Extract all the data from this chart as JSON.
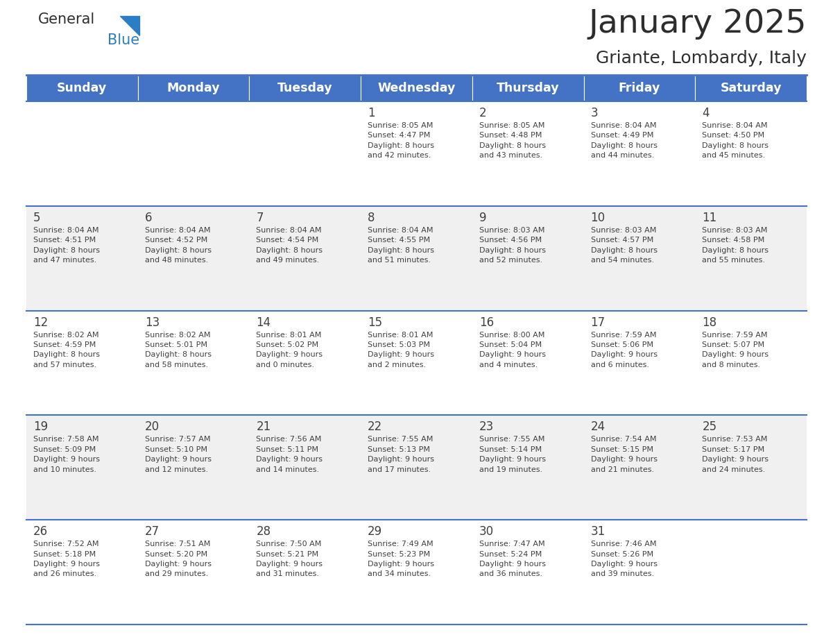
{
  "title": "January 2025",
  "subtitle": "Griante, Lombardy, Italy",
  "header_bg": "#4472C4",
  "header_text_color": "#FFFFFF",
  "cell_bg_even": "#FFFFFF",
  "cell_bg_odd": "#F0F0F0",
  "border_color": "#4472C4",
  "text_color": "#404040",
  "days_of_week": [
    "Sunday",
    "Monday",
    "Tuesday",
    "Wednesday",
    "Thursday",
    "Friday",
    "Saturday"
  ],
  "weeks": [
    [
      {
        "day": "",
        "info": ""
      },
      {
        "day": "",
        "info": ""
      },
      {
        "day": "",
        "info": ""
      },
      {
        "day": "1",
        "info": "Sunrise: 8:05 AM\nSunset: 4:47 PM\nDaylight: 8 hours\nand 42 minutes."
      },
      {
        "day": "2",
        "info": "Sunrise: 8:05 AM\nSunset: 4:48 PM\nDaylight: 8 hours\nand 43 minutes."
      },
      {
        "day": "3",
        "info": "Sunrise: 8:04 AM\nSunset: 4:49 PM\nDaylight: 8 hours\nand 44 minutes."
      },
      {
        "day": "4",
        "info": "Sunrise: 8:04 AM\nSunset: 4:50 PM\nDaylight: 8 hours\nand 45 minutes."
      }
    ],
    [
      {
        "day": "5",
        "info": "Sunrise: 8:04 AM\nSunset: 4:51 PM\nDaylight: 8 hours\nand 47 minutes."
      },
      {
        "day": "6",
        "info": "Sunrise: 8:04 AM\nSunset: 4:52 PM\nDaylight: 8 hours\nand 48 minutes."
      },
      {
        "day": "7",
        "info": "Sunrise: 8:04 AM\nSunset: 4:54 PM\nDaylight: 8 hours\nand 49 minutes."
      },
      {
        "day": "8",
        "info": "Sunrise: 8:04 AM\nSunset: 4:55 PM\nDaylight: 8 hours\nand 51 minutes."
      },
      {
        "day": "9",
        "info": "Sunrise: 8:03 AM\nSunset: 4:56 PM\nDaylight: 8 hours\nand 52 minutes."
      },
      {
        "day": "10",
        "info": "Sunrise: 8:03 AM\nSunset: 4:57 PM\nDaylight: 8 hours\nand 54 minutes."
      },
      {
        "day": "11",
        "info": "Sunrise: 8:03 AM\nSunset: 4:58 PM\nDaylight: 8 hours\nand 55 minutes."
      }
    ],
    [
      {
        "day": "12",
        "info": "Sunrise: 8:02 AM\nSunset: 4:59 PM\nDaylight: 8 hours\nand 57 minutes."
      },
      {
        "day": "13",
        "info": "Sunrise: 8:02 AM\nSunset: 5:01 PM\nDaylight: 8 hours\nand 58 minutes."
      },
      {
        "day": "14",
        "info": "Sunrise: 8:01 AM\nSunset: 5:02 PM\nDaylight: 9 hours\nand 0 minutes."
      },
      {
        "day": "15",
        "info": "Sunrise: 8:01 AM\nSunset: 5:03 PM\nDaylight: 9 hours\nand 2 minutes."
      },
      {
        "day": "16",
        "info": "Sunrise: 8:00 AM\nSunset: 5:04 PM\nDaylight: 9 hours\nand 4 minutes."
      },
      {
        "day": "17",
        "info": "Sunrise: 7:59 AM\nSunset: 5:06 PM\nDaylight: 9 hours\nand 6 minutes."
      },
      {
        "day": "18",
        "info": "Sunrise: 7:59 AM\nSunset: 5:07 PM\nDaylight: 9 hours\nand 8 minutes."
      }
    ],
    [
      {
        "day": "19",
        "info": "Sunrise: 7:58 AM\nSunset: 5:09 PM\nDaylight: 9 hours\nand 10 minutes."
      },
      {
        "day": "20",
        "info": "Sunrise: 7:57 AM\nSunset: 5:10 PM\nDaylight: 9 hours\nand 12 minutes."
      },
      {
        "day": "21",
        "info": "Sunrise: 7:56 AM\nSunset: 5:11 PM\nDaylight: 9 hours\nand 14 minutes."
      },
      {
        "day": "22",
        "info": "Sunrise: 7:55 AM\nSunset: 5:13 PM\nDaylight: 9 hours\nand 17 minutes."
      },
      {
        "day": "23",
        "info": "Sunrise: 7:55 AM\nSunset: 5:14 PM\nDaylight: 9 hours\nand 19 minutes."
      },
      {
        "day": "24",
        "info": "Sunrise: 7:54 AM\nSunset: 5:15 PM\nDaylight: 9 hours\nand 21 minutes."
      },
      {
        "day": "25",
        "info": "Sunrise: 7:53 AM\nSunset: 5:17 PM\nDaylight: 9 hours\nand 24 minutes."
      }
    ],
    [
      {
        "day": "26",
        "info": "Sunrise: 7:52 AM\nSunset: 5:18 PM\nDaylight: 9 hours\nand 26 minutes."
      },
      {
        "day": "27",
        "info": "Sunrise: 7:51 AM\nSunset: 5:20 PM\nDaylight: 9 hours\nand 29 minutes."
      },
      {
        "day": "28",
        "info": "Sunrise: 7:50 AM\nSunset: 5:21 PM\nDaylight: 9 hours\nand 31 minutes."
      },
      {
        "day": "29",
        "info": "Sunrise: 7:49 AM\nSunset: 5:23 PM\nDaylight: 9 hours\nand 34 minutes."
      },
      {
        "day": "30",
        "info": "Sunrise: 7:47 AM\nSunset: 5:24 PM\nDaylight: 9 hours\nand 36 minutes."
      },
      {
        "day": "31",
        "info": "Sunrise: 7:46 AM\nSunset: 5:26 PM\nDaylight: 9 hours\nand 39 minutes."
      },
      {
        "day": "",
        "info": ""
      }
    ]
  ]
}
